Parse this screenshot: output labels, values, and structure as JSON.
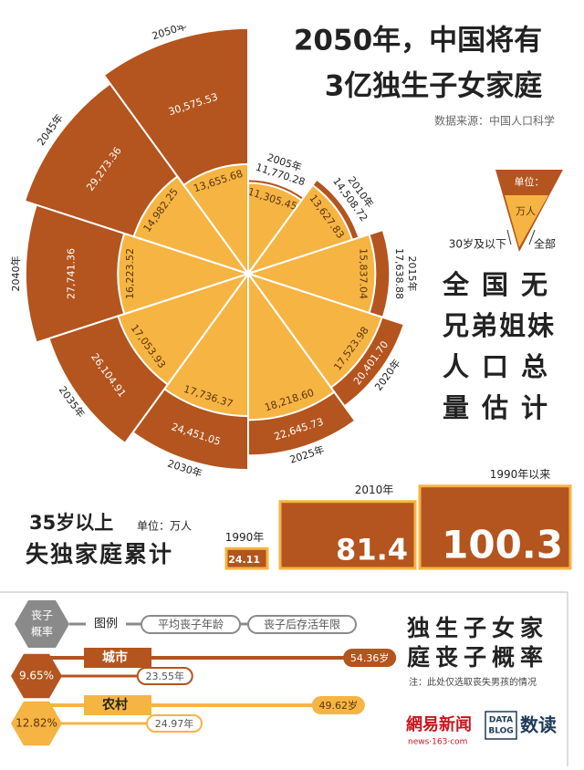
{
  "title": [
    "2050年，中国将有",
    "3亿独生子女家庭"
  ],
  "source": "数据来源：中国人口科学",
  "rose": {
    "type": "rose",
    "years": [
      "2005年",
      "2010年",
      "2015年",
      "2020年",
      "2025年",
      "2030年",
      "2035年",
      "2040年",
      "2045年",
      "2050年"
    ],
    "total": {
      "values": [
        11770.28,
        14508.72,
        17638.88,
        20401.7,
        22645.73,
        24451.05,
        26104.91,
        27741.36,
        29273.36,
        30575.53
      ],
      "value_labels": [
        "11,770.28",
        "14,508.72",
        "17,638.88",
        "20,401.70",
        "22,645.73",
        "24,451.05",
        "26,104.91",
        "27,741.36",
        "29,273.36",
        "30,575.53"
      ],
      "color": "#b4541e"
    },
    "under30": {
      "values": [
        11305.45,
        13627.83,
        15837.04,
        17523.98,
        18218.6,
        17736.37,
        17053.93,
        16223.52,
        14982.25,
        13655.68
      ],
      "value_labels": [
        "11,305.45",
        "13,627.83",
        "15,837.04",
        "17,523.98",
        "18,218.60",
        "17,736.37",
        "17,053.93",
        "16,223.52",
        "14,982.25",
        "13,655.68"
      ],
      "color": "#f6b443"
    }
  },
  "rose_legend": {
    "unit": "单位：",
    "unit_value": "万人",
    "inner": "30岁及以下",
    "outer": "全部"
  },
  "rose_title": [
    "全国无",
    "兄弟姐妹",
    "人口总",
    "量估计"
  ],
  "loss": {
    "title": [
      "35岁以上",
      "失独家庭累计"
    ],
    "unit": "单位：万人",
    "bars": [
      {
        "label": "1990年",
        "value": 24.11
      },
      {
        "label": "2010年",
        "value": 81.4
      },
      {
        "label": "1990年以来",
        "value": 100.3
      }
    ]
  },
  "probability": {
    "title": [
      "独生子女家",
      "庭丧子概率"
    ],
    "note": "注：此处仅选取丧失男孩的情况",
    "legend": {
      "hex": [
        "丧子",
        "概率"
      ],
      "label": "图例",
      "age": "平均丧子年龄",
      "years": "丧子后存活年限"
    },
    "rows": [
      {
        "name": "城市",
        "rate": 9.65,
        "rate_label": "9.65%",
        "age": 54.36,
        "age_label": "54.36岁",
        "years": 23.55,
        "years_label": "23.55年",
        "color": "#b4541e"
      },
      {
        "name": "农村",
        "rate": 12.82,
        "rate_label": "12.82%",
        "age": 49.62,
        "age_label": "49.62岁",
        "years": 24.97,
        "years_label": "24.97年",
        "color": "#f6b443"
      }
    ]
  },
  "logos": {
    "netease": "網易新闻",
    "netease_url": "news·163·com",
    "datablog": [
      "DATA",
      "BLOG"
    ],
    "shudu": "数读"
  }
}
